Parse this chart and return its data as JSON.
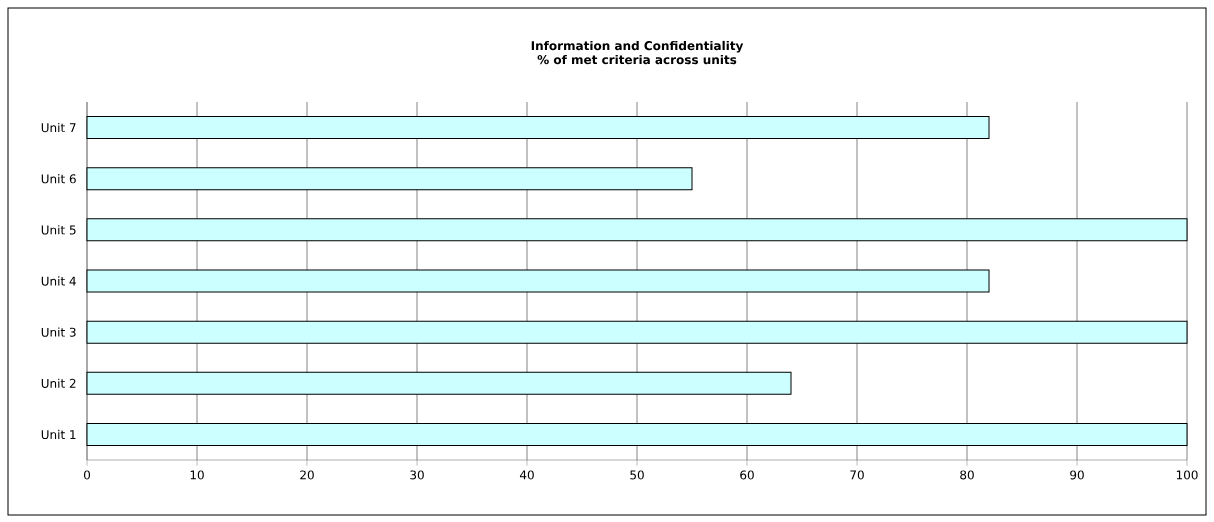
{
  "chart_data": {
    "type": "bar",
    "orientation": "horizontal",
    "title": "Information and Confidentiality",
    "subtitle": "% of met criteria across units",
    "categories": [
      "Unit 7",
      "Unit 6",
      "Unit 5",
      "Unit 4",
      "Unit 3",
      "Unit 2",
      "Unit 1"
    ],
    "values": [
      82,
      55,
      100,
      82,
      100,
      64,
      100
    ],
    "color": "#ccffff",
    "xlim": [
      0,
      100
    ],
    "xticks": [
      0,
      10,
      20,
      30,
      40,
      50,
      60,
      70,
      80,
      90,
      100
    ],
    "grid": "x"
  }
}
